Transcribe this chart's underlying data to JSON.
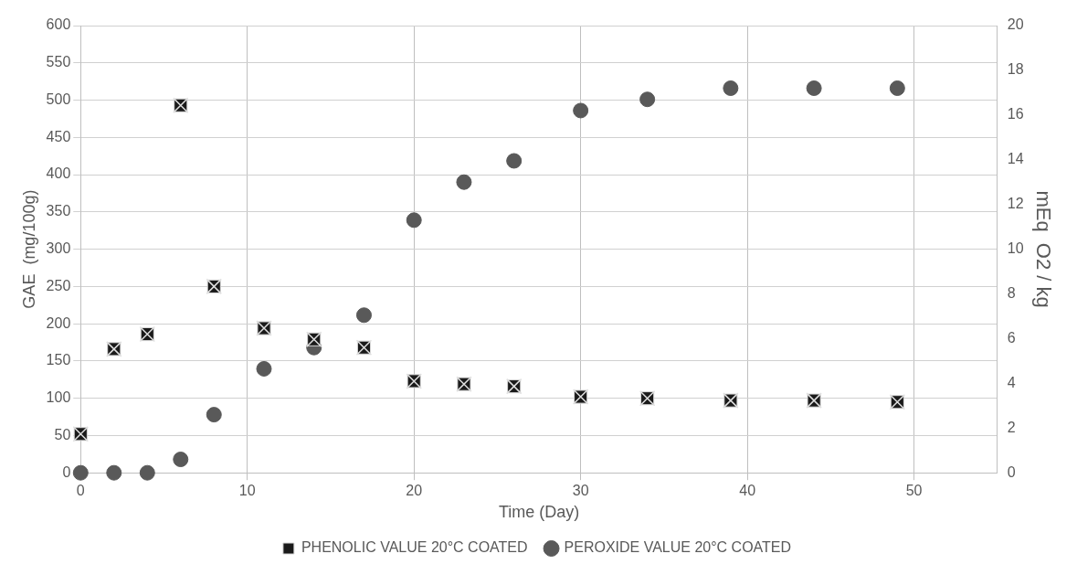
{
  "chart_data": {
    "type": "scatter",
    "xlabel": "Time (Day)",
    "ylabel": "GAE  (mg/100g)",
    "y2label": "mEq  O2 / kg",
    "xlim": [
      0,
      55
    ],
    "xticks": [
      0,
      10,
      20,
      30,
      40,
      50
    ],
    "ylim": [
      0,
      600
    ],
    "yticks": [
      0,
      50,
      100,
      150,
      200,
      250,
      300,
      350,
      400,
      450,
      500,
      550,
      600
    ],
    "y2lim": [
      0,
      20
    ],
    "y2ticks": [
      0,
      2,
      4,
      6,
      8,
      10,
      12,
      14,
      16,
      18,
      20
    ],
    "grid": true,
    "legend": "bottom",
    "series": [
      {
        "name": "PHENOLIC VALUE 20°C COATED",
        "color": "#1a1a1a",
        "marker": "square",
        "x": [
          0,
          2,
          4,
          6,
          8,
          11,
          14,
          17,
          20,
          23,
          26,
          30,
          34,
          39,
          44,
          49
        ],
        "values": [
          52,
          166,
          186,
          493,
          250,
          194,
          179,
          168,
          123,
          119,
          116,
          102,
          100,
          97,
          97,
          95
        ]
      },
      {
        "name": "PEROXIDE VALUE 20°C COATED",
        "color": "#595959",
        "marker": "circle",
        "axis": "y2",
        "x": [
          0,
          2,
          4,
          6,
          8,
          11,
          14,
          17,
          20,
          23,
          26,
          30,
          34,
          39,
          44,
          49
        ],
        "values": [
          0,
          0,
          0,
          0.6,
          2.6,
          4.65,
          5.6,
          7.05,
          11.3,
          13,
          13.95,
          16.2,
          16.7,
          17.2,
          17.2,
          17.2
        ]
      }
    ]
  }
}
